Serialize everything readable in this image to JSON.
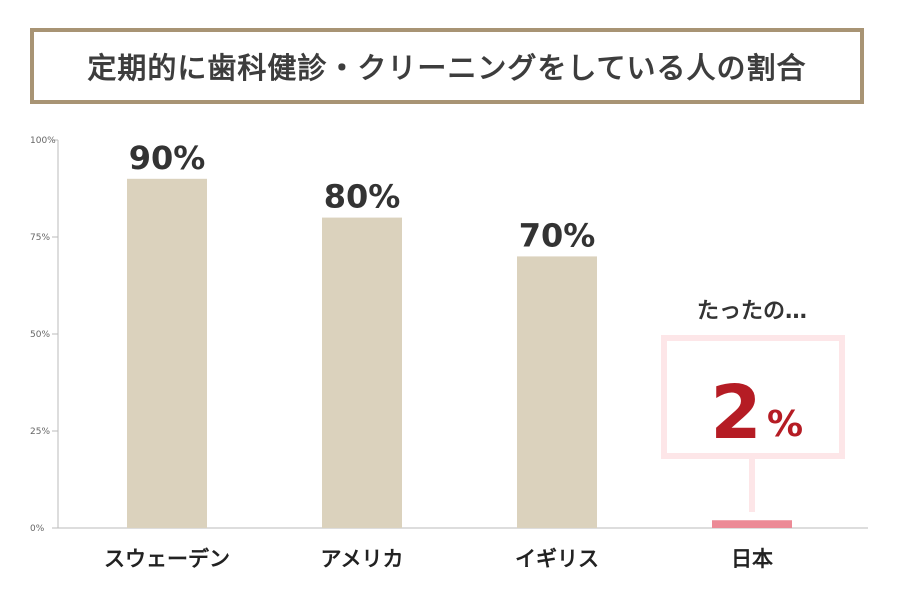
{
  "title": "定期的に歯科健診・クリーニングをしている人の割合",
  "chart_data": {
    "type": "bar",
    "title": "定期的に歯科健診・クリーニングをしている人の割合",
    "categories": [
      "スウェーデン",
      "アメリカ",
      "イギリス",
      "日本"
    ],
    "values": [
      90,
      80,
      70,
      2
    ],
    "value_labels": [
      "90%",
      "80%",
      "70%",
      ""
    ],
    "ylim": [
      0,
      100
    ],
    "yticks": [
      "0%",
      "25%",
      "50%",
      "75%",
      "100%"
    ],
    "colors": {
      "bar": "#dbd2bd",
      "highlight_bar": "#ec8a96",
      "highlight_label": "#c03a4e",
      "accent": "#b51c24",
      "callout_border": "#fde6e8"
    },
    "highlight_index": 3,
    "callout": {
      "text": "たったの…",
      "value": "2",
      "unit": "%"
    }
  }
}
